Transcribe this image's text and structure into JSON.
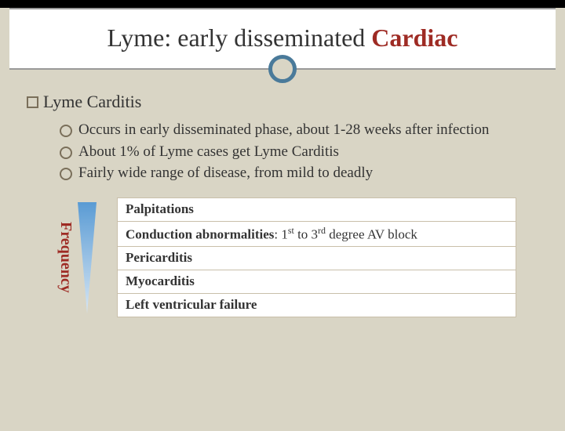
{
  "title_prefix": "Lyme: early disseminated ",
  "title_accent": "Cardiac",
  "heading": "Lyme Carditis",
  "bullets": [
    "Occurs in early disseminated phase, about 1-28 weeks after infection",
    "About 1% of Lyme cases get Lyme Carditis",
    "Fairly wide range of disease, from mild to deadly"
  ],
  "freq_label": "Frequency",
  "rows_html": [
    "<b>Palpitations</b>",
    "<b>Conduction abnormalities</b>: 1<sup>st</sup> to 3<sup>rd</sup> degree AV block",
    "<b>Pericarditis</b>",
    "<b>Myocarditis</b>",
    "<b>Left ventricular failure</b>"
  ],
  "colors": {
    "accent": "#9e2b24",
    "ring": "#4a7a9a",
    "bg": "#d9d5c5",
    "tri_top": "#5a9bd4",
    "tri_bottom": "#d6e6f4"
  },
  "triangle": {
    "width": 24,
    "height": 142
  }
}
